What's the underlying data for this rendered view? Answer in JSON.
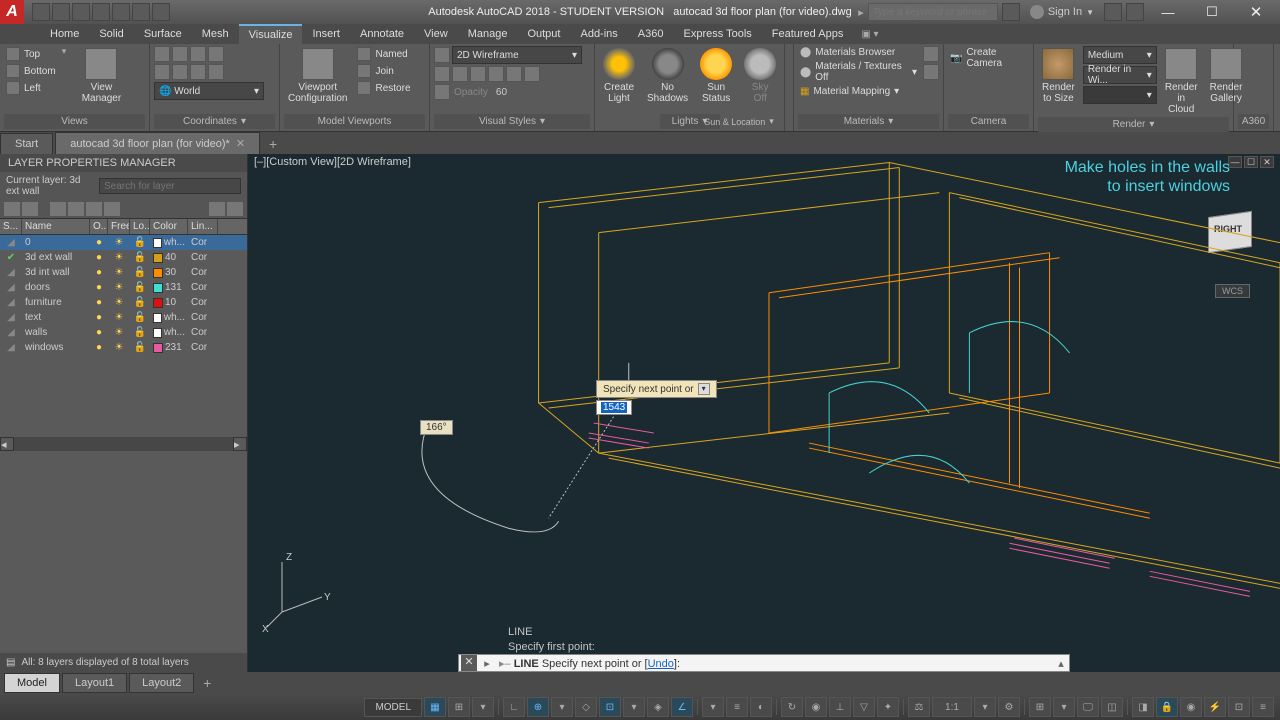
{
  "titlebar": {
    "app": "Autodesk AutoCAD 2018 - STUDENT VERSION",
    "doc": "autocad 3d floor plan (for video).dwg",
    "search_placeholder": "Type a keyword or phrase",
    "signin": "Sign In"
  },
  "ribbon_tabs": [
    "Home",
    "Solid",
    "Surface",
    "Mesh",
    "Visualize",
    "Insert",
    "Annotate",
    "View",
    "Manage",
    "Output",
    "Add-ins",
    "A360",
    "Express Tools",
    "Featured Apps"
  ],
  "ribbon_active": "Visualize",
  "ribbon": {
    "views": {
      "label": "Views",
      "top": "Top",
      "bottom": "Bottom",
      "left": "Left",
      "manager": "View\nManager"
    },
    "coordinates": {
      "label": "Coordinates",
      "named": "Named",
      "join": "Join",
      "restore": "Restore",
      "world": "World"
    },
    "viewports": {
      "label": "Model Viewports",
      "config": "Viewport\nConfiguration"
    },
    "visual": {
      "label": "Visual Styles",
      "style": "2D Wireframe",
      "opacity_lbl": "Opacity",
      "opacity_val": "60"
    },
    "lights": {
      "label": "Lights",
      "create": "Create\nLight",
      "noshadow": "No\nShadows",
      "sun": "Sun\nStatus",
      "sky": "Sky Off"
    },
    "sunloc": {
      "label": "Sun & Location"
    },
    "materials": {
      "label": "Materials",
      "browser": "Materials Browser",
      "textures": "Materials / Textures Off",
      "mapping": "Material Mapping"
    },
    "camera": {
      "label": "Camera",
      "create": "Create Camera"
    },
    "render": {
      "label": "Render",
      "tosize": "Render to Size",
      "quality": "Medium",
      "renderin": "Render in Wi...",
      "cloud": "Render in\nCloud",
      "gallery": "Render\nGallery"
    },
    "a360": {
      "label": "A360"
    }
  },
  "doctabs": {
    "start": "Start",
    "file": "autocad 3d floor plan (for video)*"
  },
  "layer_panel": {
    "title": "LAYER PROPERTIES MANAGER",
    "current": "Current layer: 3d ext wall",
    "search_ph": "Search for layer",
    "cols": [
      "S...",
      "Name",
      "O...",
      "Free...",
      "Lo...",
      "Color",
      "Lin..."
    ],
    "rows": [
      {
        "name": "0",
        "on": true,
        "color": "#ffffff",
        "colname": "wh...",
        "line": "Cor",
        "sel": true
      },
      {
        "name": "3d ext wall",
        "on": true,
        "color": "#d4a017",
        "colname": "40",
        "line": "Cor",
        "check": true
      },
      {
        "name": "3d int wall",
        "on": true,
        "color": "#ff8c00",
        "colname": "30",
        "line": "Cor"
      },
      {
        "name": "doors",
        "on": true,
        "color": "#40e0d0",
        "colname": "131",
        "line": "Cor"
      },
      {
        "name": "furniture",
        "on": true,
        "color": "#e01010",
        "colname": "10",
        "line": "Cor"
      },
      {
        "name": "text",
        "on": true,
        "color": "#ffffff",
        "colname": "wh...",
        "line": "Cor"
      },
      {
        "name": "walls",
        "on": true,
        "color": "#ffffff",
        "colname": "wh...",
        "line": "Cor"
      },
      {
        "name": "windows",
        "on": true,
        "color": "#e85aa0",
        "colname": "231",
        "line": "Cor"
      }
    ],
    "status": "All: 8 layers displayed of 8 total layers"
  },
  "viewport": {
    "label": "[–][Custom View][2D Wireframe]",
    "overlay_l1": "Make holes in the walls",
    "overlay_l2": "to insert windows",
    "viewcube_face": "RIGHT",
    "wcs": "WCS",
    "dyn_prompt": "Specify next point or",
    "dyn_value": "1543",
    "angle": "166°",
    "ucs": {
      "x": "X",
      "y": "Y",
      "z": "Z"
    },
    "colors": {
      "bg": "#1a2f35",
      "ext_wall": "#d9a520",
      "int_wall": "#ff8c00",
      "door": "#48d1cc",
      "window": "#e85aa0",
      "construction": "#c0c0c0"
    }
  },
  "cmd": {
    "hist1": "LINE",
    "hist2": "Specify first point:",
    "prompt_cmd": "LINE",
    "prompt_txt": "Specify next point or [",
    "prompt_undo": "Undo",
    "prompt_end": "]:"
  },
  "layout_tabs": [
    "Model",
    "Layout1",
    "Layout2"
  ],
  "statusbar": {
    "model": "MODEL",
    "scale": "1:1"
  }
}
